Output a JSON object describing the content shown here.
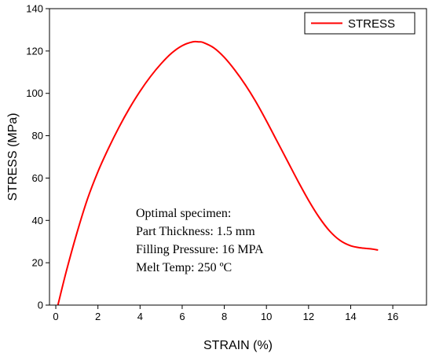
{
  "chart_data": {
    "type": "line",
    "xlabel": "STRAIN (%)",
    "ylabel": "STRESS (MPa)",
    "xlim": [
      -0.3,
      17.6
    ],
    "ylim": [
      0,
      140
    ],
    "xticks": [
      "0",
      "2",
      "4",
      "6",
      "8",
      "10",
      "12",
      "14",
      "16"
    ],
    "yticks": [
      "0",
      "20",
      "40",
      "60",
      "80",
      "100",
      "120",
      "140"
    ],
    "grid": false,
    "legend_position": "top-right",
    "series": [
      {
        "name": "STRESS",
        "color": "#ff0000",
        "x": [
          0.1,
          0.5,
          1.0,
          1.5,
          2.0,
          2.5,
          3.0,
          3.5,
          4.0,
          4.5,
          5.0,
          5.5,
          6.0,
          6.5,
          6.8,
          7.0,
          7.5,
          8.0,
          8.5,
          9.0,
          9.5,
          10.0,
          10.5,
          11.0,
          11.5,
          12.0,
          12.5,
          13.0,
          13.5,
          14.0,
          14.5,
          15.0,
          15.3
        ],
        "y": [
          0,
          16,
          34,
          50,
          63,
          74,
          84,
          93,
          101,
          108,
          114,
          119,
          122.5,
          124.3,
          124.3,
          124,
          121.5,
          117,
          111,
          104,
          96,
          87,
          77.5,
          68,
          58.5,
          49.5,
          41.5,
          35,
          30.5,
          28,
          27,
          26.5,
          26
        ]
      }
    ]
  },
  "annotation": {
    "lines": [
      "Optimal specimen:",
      "Part Thickness: 1.5 mm",
      "Filling Pressure: 16 MPA",
      "Melt Temp: 250 ºC"
    ]
  }
}
